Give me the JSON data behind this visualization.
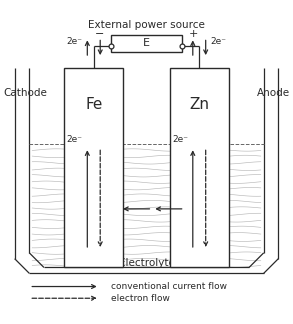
{
  "bg_color": "#ffffff",
  "lc": "#2a2a2a",
  "title": "External power source",
  "electrolyte_label": "Electrolyte",
  "cathode_label": "Cathode",
  "anode_label": "Anode",
  "fe_label": "Fe",
  "zn_label": "Zn",
  "battery_label": "E",
  "neg_label": "−",
  "pos_label": "+",
  "e2_label": "2e⁻",
  "legend_solid": "conventional current flow",
  "legend_dashed": "electron flow",
  "figsize": [
    2.93,
    3.24
  ],
  "dpi": 100
}
